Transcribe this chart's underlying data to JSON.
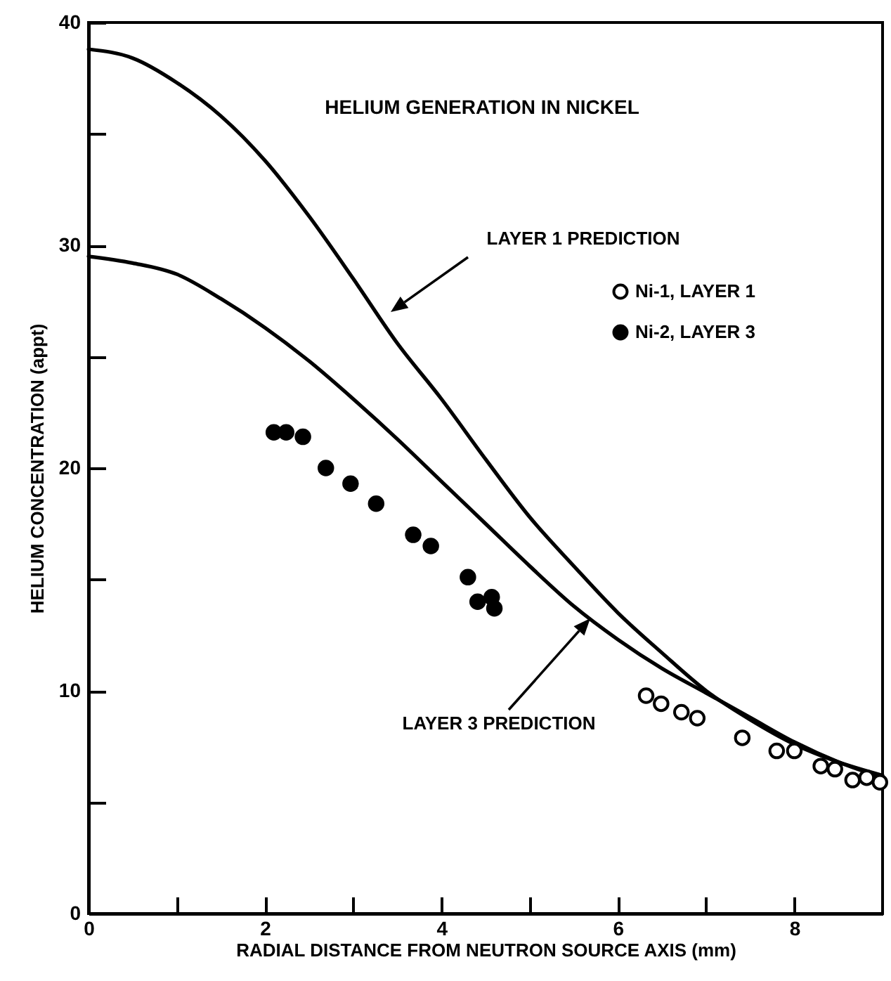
{
  "chart_data": {
    "type": "scatter",
    "title": "HELIUM GENERATION IN NICKEL",
    "xlabel": "RADIAL DISTANCE FROM NEUTRON SOURCE AXIS (mm)",
    "ylabel": "HELIUM CONCENTRATION (appt)",
    "xlim": [
      0,
      9
    ],
    "ylim": [
      0,
      40
    ],
    "xticks": [
      0,
      {
        "value": 1,
        "label": null
      },
      2,
      {
        "value": 3,
        "label": null
      },
      4,
      {
        "value": 5,
        "label": null
      },
      6,
      {
        "value": 7,
        "label": null
      },
      8
    ],
    "yticks": [
      0,
      {
        "value": 5,
        "label": null
      },
      10,
      {
        "value": 15,
        "label": null
      },
      20,
      {
        "value": 25,
        "label": null
      },
      30,
      {
        "value": 35,
        "label": null
      },
      40
    ],
    "legend": "right",
    "marker": "circle",
    "series": [
      {
        "type": "line",
        "color": "#000000",
        "marker": "none",
        "x": [
          0,
          0.5,
          1,
          1.5,
          2,
          2.5,
          3,
          3.5,
          4,
          4.5,
          5,
          5.5,
          6,
          6.5,
          7,
          7.5,
          8,
          8.5,
          9
        ],
        "values": [
          38.8,
          38.4,
          37.3,
          35.8,
          33.8,
          31.3,
          28.5,
          25.6,
          23.1,
          20.4,
          17.8,
          15.6,
          13.5,
          11.7,
          10.0,
          8.7,
          7.6,
          6.8,
          6.2
        ]
      },
      {
        "type": "line",
        "color": "#000000",
        "marker": "none",
        "x": [
          0,
          0.5,
          1,
          1.5,
          2,
          2.5,
          3,
          3.5,
          4,
          4.5,
          5,
          5.5,
          6,
          6.5,
          7,
          7.5,
          8,
          8.5,
          9
        ],
        "values": [
          29.5,
          29.2,
          28.7,
          27.6,
          26.3,
          24.8,
          23.1,
          21.3,
          19.4,
          17.5,
          15.6,
          13.8,
          12.3,
          11.0,
          9.9,
          8.8,
          7.7,
          6.8,
          6.1
        ]
      },
      {
        "name": "Ni-1, LAYER 1",
        "color": "#000000",
        "x": [
          6.32,
          6.49,
          6.72,
          6.9,
          7.41,
          7.8,
          8.0,
          8.3,
          8.46,
          8.66,
          8.82,
          8.97
        ],
        "values": [
          9.78,
          9.42,
          9.04,
          8.77,
          7.89,
          7.3,
          7.3,
          6.62,
          6.48,
          5.99,
          6.1,
          5.89
        ]
      },
      {
        "name": "Ni-2, LAYER 3",
        "color": "#000000",
        "x": [
          2.1,
          2.24,
          2.43,
          2.69,
          2.97,
          3.26,
          3.68,
          3.88,
          4.3,
          4.41,
          4.57,
          4.6
        ],
        "values": [
          21.6,
          21.6,
          21.4,
          20,
          19.3,
          18.4,
          17,
          16.5,
          15.1,
          14,
          14.2,
          13.7
        ]
      }
    ],
    "annotations": [
      "LAYER 1 PREDICTION",
      "LAYER 3 PREDICTION"
    ]
  }
}
